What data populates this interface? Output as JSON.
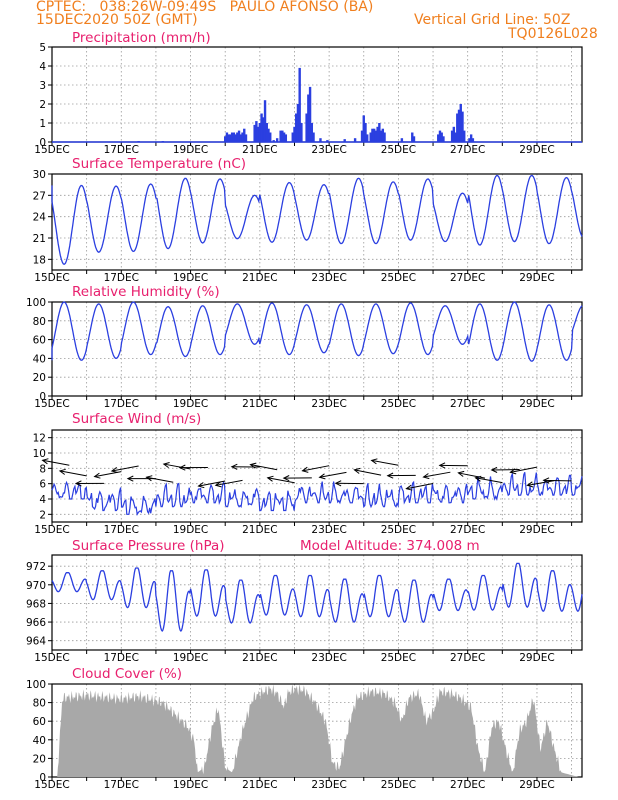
{
  "header": {
    "line1": "CPTEC:   038:26W-09:49S   PAULO AFONSO (BA)",
    "line2_left": "15DEC2020 50Z (GMT)",
    "line2_right": "Vertical Grid Line: 50Z",
    "line3_right": "TQ0126L028"
  },
  "colors": {
    "header": "#f07f1e",
    "title": "#e8206e",
    "line": "#2b3fe0",
    "cloud": "#a8a8a8",
    "grid": "#9a9a9a"
  },
  "chart_data": [
    {
      "type": "bar",
      "title": "Precipitation (mm/h)",
      "ylim": [
        0,
        5
      ],
      "yticks": [
        0,
        1,
        2,
        3,
        4,
        5
      ],
      "xticks": [
        "15DEC",
        "17DEC",
        "19DEC",
        "21DEC",
        "23DEC",
        "25DEC",
        "27DEC",
        "29DEC"
      ],
      "x_range_days": [
        0,
        15.3
      ],
      "bars": [
        [
          2.5,
          0.05
        ],
        [
          3.2,
          0.05
        ],
        [
          5.0,
          0.3
        ],
        [
          5.05,
          0.5
        ],
        [
          5.1,
          0.4
        ],
        [
          5.15,
          0.4
        ],
        [
          5.2,
          0.5
        ],
        [
          5.25,
          0.5
        ],
        [
          5.3,
          0.4
        ],
        [
          5.35,
          0.5
        ],
        [
          5.4,
          0.6
        ],
        [
          5.45,
          0.4
        ],
        [
          5.5,
          0.5
        ],
        [
          5.55,
          0.7
        ],
        [
          5.6,
          0.4
        ],
        [
          5.85,
          0.9
        ],
        [
          5.9,
          1.1
        ],
        [
          5.95,
          0.8
        ],
        [
          6.0,
          1.0
        ],
        [
          6.05,
          1.5
        ],
        [
          6.1,
          1.3
        ],
        [
          6.15,
          2.2
        ],
        [
          6.2,
          1.0
        ],
        [
          6.25,
          0.7
        ],
        [
          6.3,
          0.5
        ],
        [
          6.4,
          0.1
        ],
        [
          6.5,
          0.2
        ],
        [
          6.6,
          0.6
        ],
        [
          6.65,
          0.6
        ],
        [
          6.7,
          0.5
        ],
        [
          6.75,
          0.4
        ],
        [
          6.95,
          0.5
        ],
        [
          7.0,
          0.8
        ],
        [
          7.05,
          1.5
        ],
        [
          7.1,
          2.0
        ],
        [
          7.15,
          3.9
        ],
        [
          7.2,
          1.0
        ],
        [
          7.35,
          1.5
        ],
        [
          7.4,
          2.5
        ],
        [
          7.45,
          2.9
        ],
        [
          7.5,
          1.0
        ],
        [
          7.55,
          0.5
        ],
        [
          7.75,
          0.2
        ],
        [
          7.95,
          0.1
        ],
        [
          8.45,
          0.15
        ],
        [
          8.75,
          0.2
        ],
        [
          8.95,
          0.6
        ],
        [
          9.0,
          1.4
        ],
        [
          9.05,
          1.0
        ],
        [
          9.1,
          0.4
        ],
        [
          9.2,
          0.5
        ],
        [
          9.25,
          0.7
        ],
        [
          9.3,
          0.7
        ],
        [
          9.35,
          0.6
        ],
        [
          9.4,
          0.8
        ],
        [
          9.45,
          1.0
        ],
        [
          9.5,
          0.6
        ],
        [
          9.55,
          0.7
        ],
        [
          9.6,
          0.5
        ],
        [
          10.1,
          0.2
        ],
        [
          10.4,
          0.5
        ],
        [
          10.45,
          0.3
        ],
        [
          11.15,
          0.4
        ],
        [
          11.2,
          0.6
        ],
        [
          11.25,
          0.5
        ],
        [
          11.3,
          0.3
        ],
        [
          11.55,
          0.6
        ],
        [
          11.6,
          0.8
        ],
        [
          11.65,
          0.5
        ],
        [
          11.7,
          1.5
        ],
        [
          11.75,
          1.7
        ],
        [
          11.8,
          2.0
        ],
        [
          11.85,
          1.6
        ],
        [
          11.9,
          0.6
        ],
        [
          12.05,
          0.2
        ],
        [
          12.1,
          0.4
        ],
        [
          12.15,
          0.2
        ]
      ]
    },
    {
      "type": "line",
      "title": "Surface Temperature (nC)",
      "ylim": [
        16.5,
        30
      ],
      "yticks": [
        18,
        21,
        24,
        27,
        30
      ],
      "xticks": [
        "15DEC",
        "17DEC",
        "19DEC",
        "21DEC",
        "23DEC",
        "25DEC",
        "27DEC",
        "29DEC"
      ],
      "series": [
        {
          "minima": [
            17.3,
            19.0,
            19.1,
            19.5,
            20.3,
            20.9,
            20.4,
            20.7,
            20.2,
            20.2,
            20.7,
            20.5,
            20.0,
            20.5,
            20.2,
            21.0
          ],
          "maxima": [
            28.4,
            28.3,
            28.6,
            29.4,
            29.3,
            27.0,
            28.8,
            28.5,
            29.4,
            28.9,
            29.3,
            27.3,
            29.8,
            29.8,
            29.5
          ]
        }
      ]
    },
    {
      "type": "line",
      "title": "Relative Humidity (%)",
      "ylim": [
        0,
        100
      ],
      "yticks": [
        0,
        20,
        40,
        60,
        80,
        100
      ],
      "xticks": [
        "15DEC",
        "17DEC",
        "19DEC",
        "21DEC",
        "23DEC",
        "25DEC",
        "27DEC",
        "29DEC"
      ],
      "series": [
        {
          "minima": [
            38,
            40,
            44,
            42,
            44,
            55,
            44,
            46,
            43,
            45,
            44,
            55,
            38,
            37,
            38
          ],
          "maxima": [
            100,
            98,
            100,
            95,
            96,
            98,
            99,
            97,
            98,
            98,
            99,
            96,
            98,
            100,
            97
          ]
        }
      ]
    },
    {
      "type": "line",
      "title": "Surface Wind (m/s)",
      "ylim": [
        1,
        13
      ],
      "yticks": [
        2,
        4,
        6,
        8,
        10,
        12
      ],
      "xticks": [
        "15DEC",
        "17DEC",
        "19DEC",
        "21DEC",
        "23DEC",
        "25DEC",
        "27DEC",
        "29DEC"
      ],
      "series": [
        {
          "minima": [
            4.5,
            3.0,
            2.5,
            3.5,
            4.0,
            3.5,
            3.0,
            4.0,
            4.0,
            3.5,
            4.0,
            4.0,
            4.5,
            5.0,
            5.0
          ],
          "maxima": [
            8.5,
            11.0,
            9.0,
            10.0,
            9.5,
            10.0,
            9.0,
            9.5,
            9.5,
            10.0,
            9.5,
            10.0,
            10.0,
            11.0,
            10.5
          ]
        }
      ]
    },
    {
      "type": "line",
      "title": "Surface Pressure (hPa)",
      "subtitle": "Model Altitude: 374.008  m",
      "ylim": [
        963,
        973.2
      ],
      "yticks": [
        964,
        966,
        968,
        970,
        972
      ],
      "xticks": [
        "15DEC",
        "17DEC",
        "19DEC",
        "21DEC",
        "23DEC",
        "25DEC",
        "27DEC",
        "29DEC"
      ],
      "series": [
        {
          "minima": [
            969.0,
            968.0,
            967.0,
            964.2,
            966.0,
            965.3,
            966.2,
            966.0,
            965.4,
            966.0,
            965.4,
            966.8,
            966.8,
            967.0,
            966.6
          ],
          "maxima": [
            971.3,
            971.5,
            971.8,
            971.5,
            971.6,
            970.5,
            971.0,
            971.0,
            970.6,
            971.0,
            970.5,
            970.6,
            971.0,
            972.3,
            971.5
          ]
        }
      ]
    },
    {
      "type": "bar",
      "title": "Cloud Cover (%)",
      "ylim": [
        0,
        100
      ],
      "yticks": [
        0,
        20,
        40,
        60,
        80,
        100
      ],
      "xticks": [
        "15DEC",
        "17DEC",
        "19DEC",
        "21DEC",
        "23DEC",
        "25DEC",
        "27DEC",
        "29DEC"
      ],
      "envelope": [
        [
          0.15,
          0
        ],
        [
          0.3,
          85
        ],
        [
          1.0,
          88
        ],
        [
          2.0,
          84
        ],
        [
          2.5,
          87
        ],
        [
          3.2,
          80
        ],
        [
          3.9,
          55
        ],
        [
          4.1,
          40
        ],
        [
          4.2,
          5
        ],
        [
          4.4,
          10
        ],
        [
          4.6,
          50
        ],
        [
          4.8,
          75
        ],
        [
          5.0,
          10
        ],
        [
          5.2,
          5
        ],
        [
          5.5,
          50
        ],
        [
          5.8,
          85
        ],
        [
          6.0,
          90
        ],
        [
          6.3,
          95
        ],
        [
          6.5,
          90
        ],
        [
          6.7,
          75
        ],
        [
          6.8,
          90
        ],
        [
          7.0,
          95
        ],
        [
          7.3,
          93
        ],
        [
          7.6,
          80
        ],
        [
          7.9,
          60
        ],
        [
          8.1,
          15
        ],
        [
          8.3,
          10
        ],
        [
          8.6,
          60
        ],
        [
          8.8,
          85
        ],
        [
          9.2,
          92
        ],
        [
          9.6,
          90
        ],
        [
          9.9,
          80
        ],
        [
          10.1,
          60
        ],
        [
          10.3,
          85
        ],
        [
          10.6,
          90
        ],
        [
          10.8,
          60
        ],
        [
          11.0,
          70
        ],
        [
          11.2,
          92
        ],
        [
          11.5,
          90
        ],
        [
          11.8,
          85
        ],
        [
          12.1,
          75
        ],
        [
          12.3,
          30
        ],
        [
          12.5,
          5
        ],
        [
          12.7,
          55
        ],
        [
          12.9,
          60
        ],
        [
          13.1,
          30
        ],
        [
          13.3,
          5
        ],
        [
          13.5,
          50
        ],
        [
          13.7,
          60
        ],
        [
          13.9,
          85
        ],
        [
          14.1,
          30
        ],
        [
          14.3,
          60
        ],
        [
          14.5,
          30
        ],
        [
          14.7,
          5
        ],
        [
          15.2,
          0
        ]
      ]
    }
  ]
}
